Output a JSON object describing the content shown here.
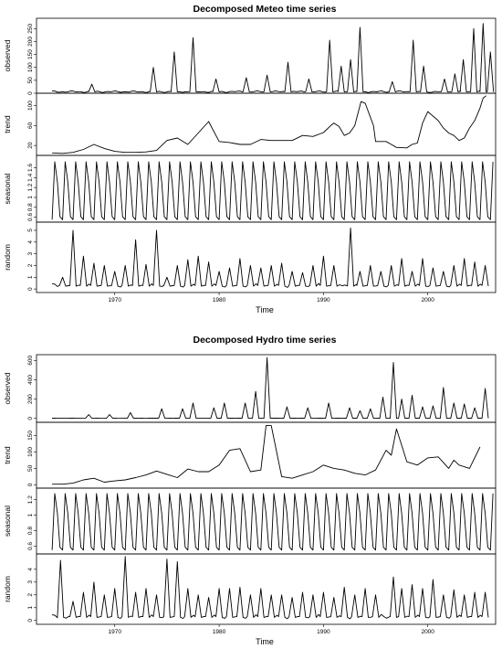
{
  "chart_data": [
    {
      "type": "line",
      "title": "Decomposed Meteo time series",
      "xlabel": "Time",
      "xlim": [
        1962.5,
        2006.5
      ],
      "x_ticks": [
        1970,
        1980,
        1990,
        2000
      ],
      "panels": [
        {
          "name": "observed",
          "ylim": [
            0,
            290
          ],
          "y_ticks": [
            0,
            50,
            100,
            150,
            200,
            250
          ],
          "kind": "events",
          "base": 6,
          "events": [
            [
              1967.8,
              35
            ],
            [
              1973.7,
              100
            ],
            [
              1975.7,
              160
            ],
            [
              1977.5,
              215
            ],
            [
              1979.7,
              55
            ],
            [
              1982.6,
              60
            ],
            [
              1984.6,
              70
            ],
            [
              1986.6,
              120
            ],
            [
              1988.6,
              55
            ],
            [
              1990.6,
              205
            ],
            [
              1991.7,
              105
            ],
            [
              1992.6,
              130
            ],
            [
              1993.5,
              255
            ],
            [
              1996.6,
              45
            ],
            [
              1998.6,
              205
            ],
            [
              1999.6,
              105
            ],
            [
              2001.6,
              55
            ],
            [
              2002.6,
              75
            ],
            [
              2003.4,
              130
            ],
            [
              2004.4,
              250
            ],
            [
              2005.3,
              270
            ],
            [
              2006.0,
              160
            ]
          ]
        },
        {
          "name": "trend",
          "ylim": [
            0,
            125
          ],
          "y_ticks": [
            20,
            60,
            100
          ],
          "kind": "line",
          "x": [
            1964,
            1965,
            1966,
            1967,
            1968,
            1969,
            1970,
            1971,
            1972,
            1973,
            1974,
            1975,
            1976,
            1977,
            1978,
            1979,
            1980,
            1981,
            1982,
            1983,
            1984,
            1985,
            1986,
            1987,
            1988,
            1989,
            1990,
            1990.7,
            1991,
            1991.5,
            1992,
            1992.5,
            1993,
            1993.6,
            1994,
            1994.8,
            1995,
            1996,
            1996.5,
            1997,
            1998,
            1998.5,
            1999,
            1999.5,
            2000,
            2001,
            2001.5,
            2002,
            2002.5,
            2003,
            2003.5,
            2004,
            2004.5,
            2005,
            2005.3,
            2005.6
          ],
          "y": [
            5,
            4,
            6,
            12,
            22,
            14,
            8,
            6,
            6,
            7,
            10,
            30,
            35,
            22,
            45,
            68,
            28,
            26,
            22,
            22,
            32,
            30,
            30,
            30,
            40,
            38,
            46,
            60,
            65,
            58,
            40,
            45,
            60,
            108,
            105,
            60,
            28,
            28,
            22,
            16,
            15,
            22,
            25,
            65,
            88,
            70,
            55,
            45,
            40,
            30,
            35,
            55,
            70,
            95,
            115,
            120
          ]
        },
        {
          "name": "seasonal",
          "ylim": [
            0.5,
            1.85
          ],
          "y_ticks": [
            0.6,
            0.8,
            1.0,
            1.2,
            1.4,
            1.6
          ],
          "kind": "seasonal",
          "x_start": 1964,
          "period": 1,
          "min": 0.55,
          "max": 1.72
        },
        {
          "name": "random",
          "ylim": [
            -0.3,
            5.7
          ],
          "y_ticks": [
            0,
            1,
            2,
            3,
            4,
            5
          ],
          "kind": "events",
          "base": 0.3,
          "events": [
            [
              1965,
              1.0
            ],
            [
              1966,
              5.0
            ],
            [
              1967,
              2.8
            ],
            [
              1968,
              2.2
            ],
            [
              1969,
              2.0
            ],
            [
              1970,
              1.5
            ],
            [
              1971,
              2.0
            ],
            [
              1972,
              4.2
            ],
            [
              1973,
              2.1
            ],
            [
              1974,
              5.0
            ],
            [
              1975,
              1.0
            ],
            [
              1976,
              2.0
            ],
            [
              1977,
              2.5
            ],
            [
              1978,
              2.8
            ],
            [
              1979,
              2.3
            ],
            [
              1980,
              1.5
            ],
            [
              1981,
              1.8
            ],
            [
              1982,
              2.6
            ],
            [
              1983,
              2.0
            ],
            [
              1984,
              1.8
            ],
            [
              1985,
              2.0
            ],
            [
              1986,
              2.2
            ],
            [
              1987,
              1.5
            ],
            [
              1988,
              1.4
            ],
            [
              1989,
              2.0
            ],
            [
              1990,
              2.8
            ],
            [
              1991,
              2.0
            ],
            [
              1992.6,
              5.2
            ],
            [
              1993.5,
              1.5
            ],
            [
              1994.5,
              2.0
            ],
            [
              1995.5,
              1.5
            ],
            [
              1996.5,
              2.0
            ],
            [
              1997.5,
              2.6
            ],
            [
              1998.5,
              1.5
            ],
            [
              1999.5,
              2.6
            ],
            [
              2000.5,
              1.8
            ],
            [
              2001.5,
              1.5
            ],
            [
              2002.5,
              2.0
            ],
            [
              2003.5,
              2.6
            ],
            [
              2004.5,
              2.3
            ],
            [
              2005.5,
              2.0
            ]
          ]
        }
      ]
    },
    {
      "type": "line",
      "title": "Decomposed Hydro time series",
      "xlabel": "Time",
      "xlim": [
        1962.5,
        2006.5
      ],
      "x_ticks": [
        1970,
        1980,
        1990,
        2000
      ],
      "panels": [
        {
          "name": "observed",
          "ylim": [
            -40,
            660
          ],
          "y_ticks": [
            0,
            200,
            400,
            600
          ],
          "kind": "events",
          "base": 2,
          "events": [
            [
              1967.5,
              40
            ],
            [
              1969.5,
              40
            ],
            [
              1971.5,
              60
            ],
            [
              1974.5,
              100
            ],
            [
              1976.5,
              100
            ],
            [
              1977.5,
              160
            ],
            [
              1979.5,
              110
            ],
            [
              1980.5,
              160
            ],
            [
              1982.5,
              160
            ],
            [
              1983.5,
              280
            ],
            [
              1984.6,
              630
            ],
            [
              1986.5,
              120
            ],
            [
              1988.5,
              110
            ],
            [
              1990.5,
              160
            ],
            [
              1992.5,
              110
            ],
            [
              1993.5,
              80
            ],
            [
              1994.5,
              100
            ],
            [
              1995.7,
              220
            ],
            [
              1996.7,
              580
            ],
            [
              1997.5,
              200
            ],
            [
              1998.5,
              240
            ],
            [
              1999.5,
              120
            ],
            [
              2000.5,
              130
            ],
            [
              2001.5,
              320
            ],
            [
              2002.5,
              160
            ],
            [
              2003.5,
              150
            ],
            [
              2004.5,
              110
            ],
            [
              2005.5,
              310
            ]
          ]
        },
        {
          "name": "trend",
          "ylim": [
            -10,
            190
          ],
          "y_ticks": [
            0,
            50,
            100,
            150
          ],
          "kind": "line",
          "x": [
            1964,
            1965,
            1966,
            1967,
            1968,
            1969,
            1970,
            1971,
            1972,
            1973,
            1974,
            1975,
            1976,
            1977,
            1978,
            1979,
            1980,
            1981,
            1982,
            1983,
            1984,
            1984.5,
            1985,
            1986,
            1987,
            1988,
            1989,
            1990,
            1991,
            1992,
            1993,
            1994,
            1995,
            1996,
            1996.5,
            1997,
            1998,
            1999,
            2000,
            2001,
            2002,
            2002.5,
            2003,
            2004,
            2005
          ],
          "y": [
            2,
            2,
            5,
            15,
            20,
            8,
            12,
            15,
            22,
            30,
            42,
            32,
            22,
            48,
            40,
            40,
            60,
            105,
            110,
            40,
            45,
            180,
            180,
            25,
            20,
            30,
            40,
            60,
            50,
            45,
            35,
            30,
            45,
            105,
            90,
            170,
            70,
            60,
            82,
            85,
            50,
            75,
            60,
            50,
            115
          ]
        },
        {
          "name": "seasonal",
          "ylim": [
            0.5,
            1.35
          ],
          "y_ticks": [
            0.6,
            0.8,
            1.0,
            1.2
          ],
          "kind": "seasonal",
          "x_start": 1964,
          "period": 1,
          "min": 0.55,
          "max": 1.28
        },
        {
          "name": "random",
          "ylim": [
            -0.3,
            5.2
          ],
          "y_ticks": [
            0,
            1,
            2,
            3,
            4
          ],
          "kind": "events",
          "base": 0.3,
          "events": [
            [
              1964.8,
              4.7
            ],
            [
              1966,
              1.5
            ],
            [
              1967,
              2.2
            ],
            [
              1968,
              3.0
            ],
            [
              1969,
              2.0
            ],
            [
              1970,
              2.5
            ],
            [
              1971,
              5.0
            ],
            [
              1972,
              2.2
            ],
            [
              1973,
              2.5
            ],
            [
              1974,
              2.0
            ],
            [
              1975,
              4.8
            ],
            [
              1976,
              4.6
            ],
            [
              1977,
              2.5
            ],
            [
              1978,
              2.0
            ],
            [
              1979,
              1.8
            ],
            [
              1980,
              2.5
            ],
            [
              1981,
              2.5
            ],
            [
              1982,
              2.6
            ],
            [
              1983,
              2.0
            ],
            [
              1984,
              2.5
            ],
            [
              1985,
              2.0
            ],
            [
              1986,
              2.0
            ],
            [
              1987,
              1.8
            ],
            [
              1988,
              2.2
            ],
            [
              1989,
              2.0
            ],
            [
              1990,
              2.2
            ],
            [
              1991,
              1.8
            ],
            [
              1992,
              2.6
            ],
            [
              1993,
              2.0
            ],
            [
              1994,
              2.5
            ],
            [
              1995,
              2.0
            ],
            [
              1996.7,
              3.4
            ],
            [
              1997.5,
              2.5
            ],
            [
              1998.5,
              2.8
            ],
            [
              1999.5,
              2.5
            ],
            [
              2000.5,
              3.2
            ],
            [
              2001.5,
              2.0
            ],
            [
              2002.5,
              2.4
            ],
            [
              2003.5,
              2.0
            ],
            [
              2004.5,
              2.2
            ],
            [
              2005.5,
              2.2
            ]
          ]
        }
      ]
    }
  ]
}
